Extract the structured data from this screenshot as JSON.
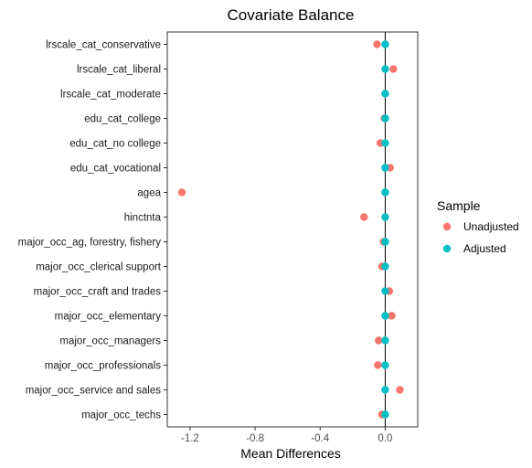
{
  "chart_data": {
    "type": "scatter",
    "title": "Covariate Balance",
    "xlabel": "Mean Differences",
    "ylabel": "",
    "xlim": [
      -1.34,
      0.2
    ],
    "xticks": [
      -1.2,
      -0.8,
      -0.4,
      0.0
    ],
    "xtick_labels": [
      "-1.2",
      "-0.8",
      "-0.4",
      "0.0"
    ],
    "reference_line_x": 0,
    "grid": false,
    "legend": {
      "title": "Sample",
      "placement": "right"
    },
    "categories": [
      "lrscale_cat_conservative",
      "lrscale_cat_liberal",
      "lrscale_cat_moderate",
      "edu_cat_college",
      "edu_cat_no college",
      "edu_cat_vocational",
      "agea",
      "hinctnta",
      "major_occ_ag, forestry, fishery",
      "major_occ_clerical support",
      "major_occ_craft and trades",
      "major_occ_elementary",
      "major_occ_managers",
      "major_occ_professionals",
      "major_occ_service and sales",
      "major_occ_techs"
    ],
    "series": [
      {
        "name": "Unadjusted",
        "color": "#F8766D",
        "values": [
          -0.05,
          0.05,
          0.0,
          -0.005,
          -0.03,
          0.03,
          -1.25,
          -0.13,
          -0.01,
          -0.02,
          0.025,
          0.04,
          -0.04,
          -0.045,
          0.09,
          -0.02
        ]
      },
      {
        "name": "Adjusted",
        "color": "#00BFC4",
        "values": [
          0.0,
          0.0,
          0.0,
          0.0,
          0.0,
          0.0,
          0.0,
          0.0,
          0.0,
          0.0,
          0.0,
          0.0,
          0.0,
          0.0,
          0.0,
          0.0
        ]
      }
    ]
  }
}
